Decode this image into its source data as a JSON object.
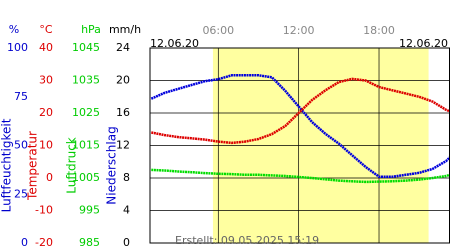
{
  "chart_data": {
    "type": "line",
    "date_left": "12.06.20",
    "date_right": "12.06.20",
    "created": "Erstellt: 09.05.2025 15:19",
    "x": [
      1,
      2,
      3,
      4,
      5,
      6,
      7,
      8,
      9,
      10,
      11,
      12,
      13,
      14,
      15,
      16,
      17,
      18,
      19,
      20,
      21,
      22,
      23,
      23.3
    ],
    "xlim": [
      0.9,
      23.3
    ],
    "xticks": [
      {
        "value": 6,
        "label": "06:00"
      },
      {
        "value": 12,
        "label": "12:00"
      },
      {
        "value": 18,
        "label": "18:00"
      }
    ],
    "shaded_range": [
      5.6,
      21.7
    ],
    "shade_color": "#ffffa0",
    "grid": true,
    "axes": [
      {
        "unit": "%",
        "title": "Luftfeuchtigkeit",
        "color": "#0000cc",
        "ylim": [
          0,
          100
        ],
        "yticks": [
          0,
          25,
          50,
          75,
          100
        ]
      },
      {
        "unit": "°C",
        "title": "Temperatur",
        "color": "#dd0000",
        "ylim": [
          -20,
          40
        ],
        "yticks": [
          -20,
          -10,
          0,
          10,
          20,
          30,
          40
        ]
      },
      {
        "unit": "hPa",
        "title": "Luftdruck",
        "color": "#00cc00",
        "ylim": [
          985,
          1045
        ],
        "yticks": [
          985,
          995,
          1005,
          1015,
          1025,
          1035,
          1045
        ]
      },
      {
        "unit": "mm/h",
        "title": "Niederschlag",
        "color": "#0000cc",
        "ylim": [
          0,
          24
        ],
        "yticks": [
          0,
          4,
          8,
          12,
          16,
          20,
          24
        ]
      }
    ],
    "series": [
      {
        "name": "Luftfeuchtigkeit",
        "color": "#0000dd",
        "axis": 0,
        "values": [
          74,
          77,
          79,
          81,
          83,
          84,
          86,
          86,
          86,
          85,
          78,
          70,
          62,
          56,
          51,
          45,
          39,
          34,
          34,
          35,
          36,
          38,
          42,
          44
        ]
      },
      {
        "name": "Temperatur",
        "color": "#dd0000",
        "axis": 1,
        "values": [
          14,
          13.2,
          12.6,
          12.2,
          11.8,
          11.2,
          10.8,
          11.2,
          12,
          13.5,
          16,
          20,
          24,
          27,
          29.5,
          30.5,
          30,
          28,
          27,
          26,
          25,
          23.5,
          21,
          20.5
        ]
      },
      {
        "name": "Luftdruck",
        "color": "#00dd00",
        "axis": 2,
        "values": [
          1007.5,
          1007.3,
          1007,
          1006.8,
          1006.5,
          1006.3,
          1006.2,
          1006,
          1006,
          1005.8,
          1005.6,
          1005.3,
          1005,
          1004.6,
          1004.2,
          1004,
          1003.8,
          1003.9,
          1004,
          1004.2,
          1004.5,
          1005,
          1005.6,
          1006
        ]
      }
    ]
  }
}
